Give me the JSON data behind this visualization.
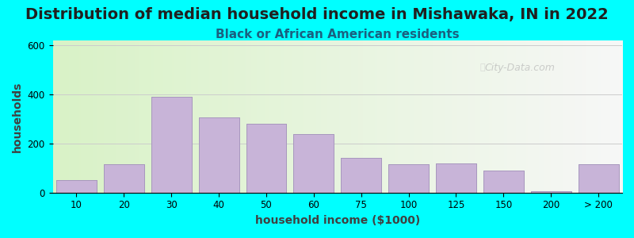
{
  "title": "Distribution of median household income in Mishawaka, IN in 2022",
  "subtitle": "Black or African American residents",
  "xlabel": "household income ($1000)",
  "ylabel": "households",
  "background_outer": "#00FFFF",
  "background_inner_left": "#d8f0c8",
  "background_inner_right": "#f5f5f5",
  "bar_color": "#c8b4d8",
  "bar_edge_color": "#a090b8",
  "categories": [
    "10",
    "20",
    "30",
    "40",
    "50",
    "60",
    "75",
    "100",
    "125",
    "150",
    "200",
    "> 200"
  ],
  "values": [
    50,
    115,
    390,
    305,
    280,
    240,
    140,
    115,
    120,
    90,
    5,
    115
  ],
  "ylim": [
    0,
    620
  ],
  "yticks": [
    0,
    200,
    400,
    600
  ],
  "title_fontsize": 14,
  "subtitle_fontsize": 11,
  "axis_label_fontsize": 10,
  "watermark": "City-Data.com"
}
